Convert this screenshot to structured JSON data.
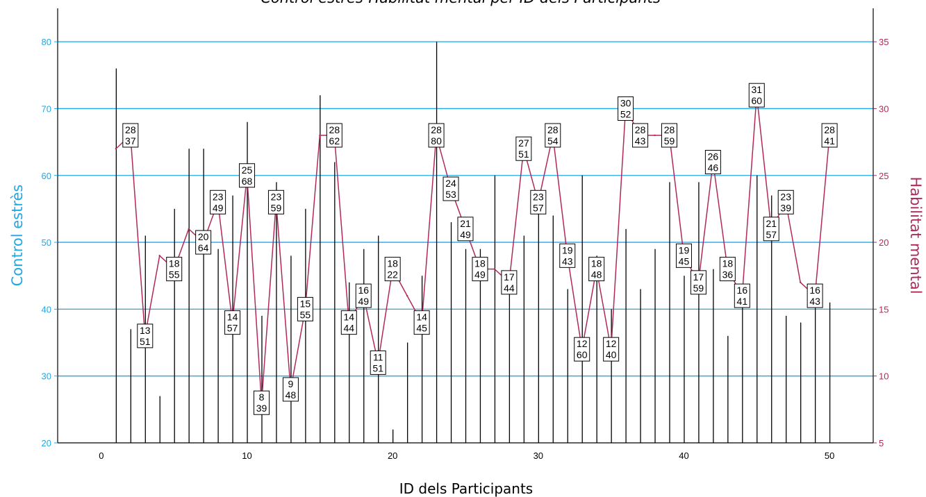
{
  "chart_data": {
    "type": "bar+line",
    "title": "Control estrès-Habilitat mental per ID dels Participants",
    "xlabel": "ID dels Participants",
    "ylabel_left": "Control estrès",
    "ylabel_right": "Habilitat mental",
    "xlim": [
      -3,
      53
    ],
    "ylim_left": [
      20,
      85
    ],
    "ylim_right": [
      5,
      37.5
    ],
    "x_ticks": [
      0,
      10,
      20,
      30,
      40,
      50
    ],
    "y_ticks_left": [
      20,
      30,
      40,
      50,
      60,
      70,
      80
    ],
    "y_ticks_right": [
      5,
      10,
      15,
      20,
      25,
      30,
      35
    ],
    "grid": "horizontal",
    "colors": {
      "left_axis": "#1ea8e6",
      "right_axis": "#b0285c",
      "line": "#b0285c",
      "bars": "#000000",
      "grid": "#1ea8e6"
    },
    "series": [
      {
        "name": "Control estrès",
        "type": "bar",
        "axis": "left",
        "x": [
          1,
          2,
          3,
          4,
          5,
          6,
          7,
          8,
          9,
          10,
          11,
          12,
          13,
          14,
          15,
          16,
          17,
          18,
          19,
          20,
          21,
          22,
          23,
          24,
          25,
          26,
          27,
          28,
          29,
          30,
          31,
          32,
          33,
          34,
          35,
          36,
          37,
          38,
          39,
          40,
          41,
          42,
          43,
          44,
          45,
          46,
          47,
          48,
          49,
          50
        ],
        "values": [
          76,
          37,
          51,
          27,
          55,
          64,
          64,
          49,
          57,
          68,
          39,
          59,
          48,
          55,
          72,
          62,
          44,
          49,
          51,
          22,
          35,
          45,
          80,
          53,
          49,
          49,
          60,
          44,
          51,
          57,
          54,
          43,
          60,
          48,
          40,
          52,
          43,
          49,
          59,
          45,
          59,
          46,
          36,
          41,
          60,
          57,
          39,
          38,
          43,
          41
        ]
      },
      {
        "name": "Habilitat mental",
        "type": "line",
        "axis": "right",
        "x": [
          1,
          2,
          3,
          4,
          5,
          6,
          7,
          8,
          9,
          10,
          11,
          12,
          13,
          14,
          15,
          16,
          17,
          18,
          19,
          20,
          21,
          22,
          23,
          24,
          25,
          26,
          27,
          28,
          29,
          30,
          31,
          32,
          33,
          34,
          35,
          36,
          37,
          38,
          39,
          40,
          41,
          42,
          43,
          44,
          45,
          46,
          47,
          48,
          49,
          50
        ],
        "values": [
          27,
          28,
          13,
          19,
          18,
          21,
          20,
          23,
          14,
          25,
          8,
          23,
          9,
          15,
          28,
          28,
          14,
          16,
          11,
          18,
          16,
          14,
          28,
          24,
          21,
          18,
          18,
          17,
          27,
          23,
          28,
          19,
          12,
          18,
          12,
          30,
          28,
          28,
          28,
          19,
          17,
          26,
          18,
          16,
          31,
          21,
          23,
          17,
          16,
          28
        ]
      }
    ],
    "annotations": [
      {
        "x": 2,
        "top": "28",
        "bottom": "37"
      },
      {
        "x": 3,
        "top": "13",
        "bottom": "51"
      },
      {
        "x": 5,
        "top": "18",
        "bottom": "55"
      },
      {
        "x": 7,
        "top": "20",
        "bottom": "64"
      },
      {
        "x": 8,
        "top": "23",
        "bottom": "49"
      },
      {
        "x": 9,
        "top": "14",
        "bottom": "57"
      },
      {
        "x": 10,
        "top": "25",
        "bottom": "68"
      },
      {
        "x": 11,
        "top": "8",
        "bottom": "39"
      },
      {
        "x": 12,
        "top": "23",
        "bottom": "59"
      },
      {
        "x": 13,
        "top": "9",
        "bottom": "48"
      },
      {
        "x": 14,
        "top": "15",
        "bottom": "55"
      },
      {
        "x": 16,
        "top": "28",
        "bottom": "62"
      },
      {
        "x": 17,
        "top": "14",
        "bottom": "44"
      },
      {
        "x": 18,
        "top": "16",
        "bottom": "49"
      },
      {
        "x": 19,
        "top": "11",
        "bottom": "51"
      },
      {
        "x": 20,
        "top": "18",
        "bottom": "22"
      },
      {
        "x": 22,
        "top": "14",
        "bottom": "45"
      },
      {
        "x": 23,
        "top": "28",
        "bottom": "80"
      },
      {
        "x": 24,
        "top": "24",
        "bottom": "53"
      },
      {
        "x": 25,
        "top": "21",
        "bottom": "49"
      },
      {
        "x": 26,
        "top": "18",
        "bottom": "49"
      },
      {
        "x": 28,
        "top": "17",
        "bottom": "44"
      },
      {
        "x": 29,
        "top": "27",
        "bottom": "51"
      },
      {
        "x": 30,
        "top": "23",
        "bottom": "57"
      },
      {
        "x": 31,
        "top": "28",
        "bottom": "54"
      },
      {
        "x": 32,
        "top": "19",
        "bottom": "43"
      },
      {
        "x": 33,
        "top": "12",
        "bottom": "60"
      },
      {
        "x": 34,
        "top": "18",
        "bottom": "48"
      },
      {
        "x": 35,
        "top": "12",
        "bottom": "40"
      },
      {
        "x": 36,
        "top": "30",
        "bottom": "52"
      },
      {
        "x": 37,
        "top": "28",
        "bottom": "43"
      },
      {
        "x": 39,
        "top": "28",
        "bottom": "59"
      },
      {
        "x": 40,
        "top": "19",
        "bottom": "45"
      },
      {
        "x": 41,
        "top": "17",
        "bottom": "59"
      },
      {
        "x": 42,
        "top": "26",
        "bottom": "46"
      },
      {
        "x": 43,
        "top": "18",
        "bottom": "36"
      },
      {
        "x": 44,
        "top": "16",
        "bottom": "41"
      },
      {
        "x": 45,
        "top": "31",
        "bottom": "60"
      },
      {
        "x": 46,
        "top": "21",
        "bottom": "57"
      },
      {
        "x": 47,
        "top": "23",
        "bottom": "39"
      },
      {
        "x": 49,
        "top": "16",
        "bottom": "43"
      },
      {
        "x": 50,
        "top": "28",
        "bottom": "41"
      }
    ]
  }
}
